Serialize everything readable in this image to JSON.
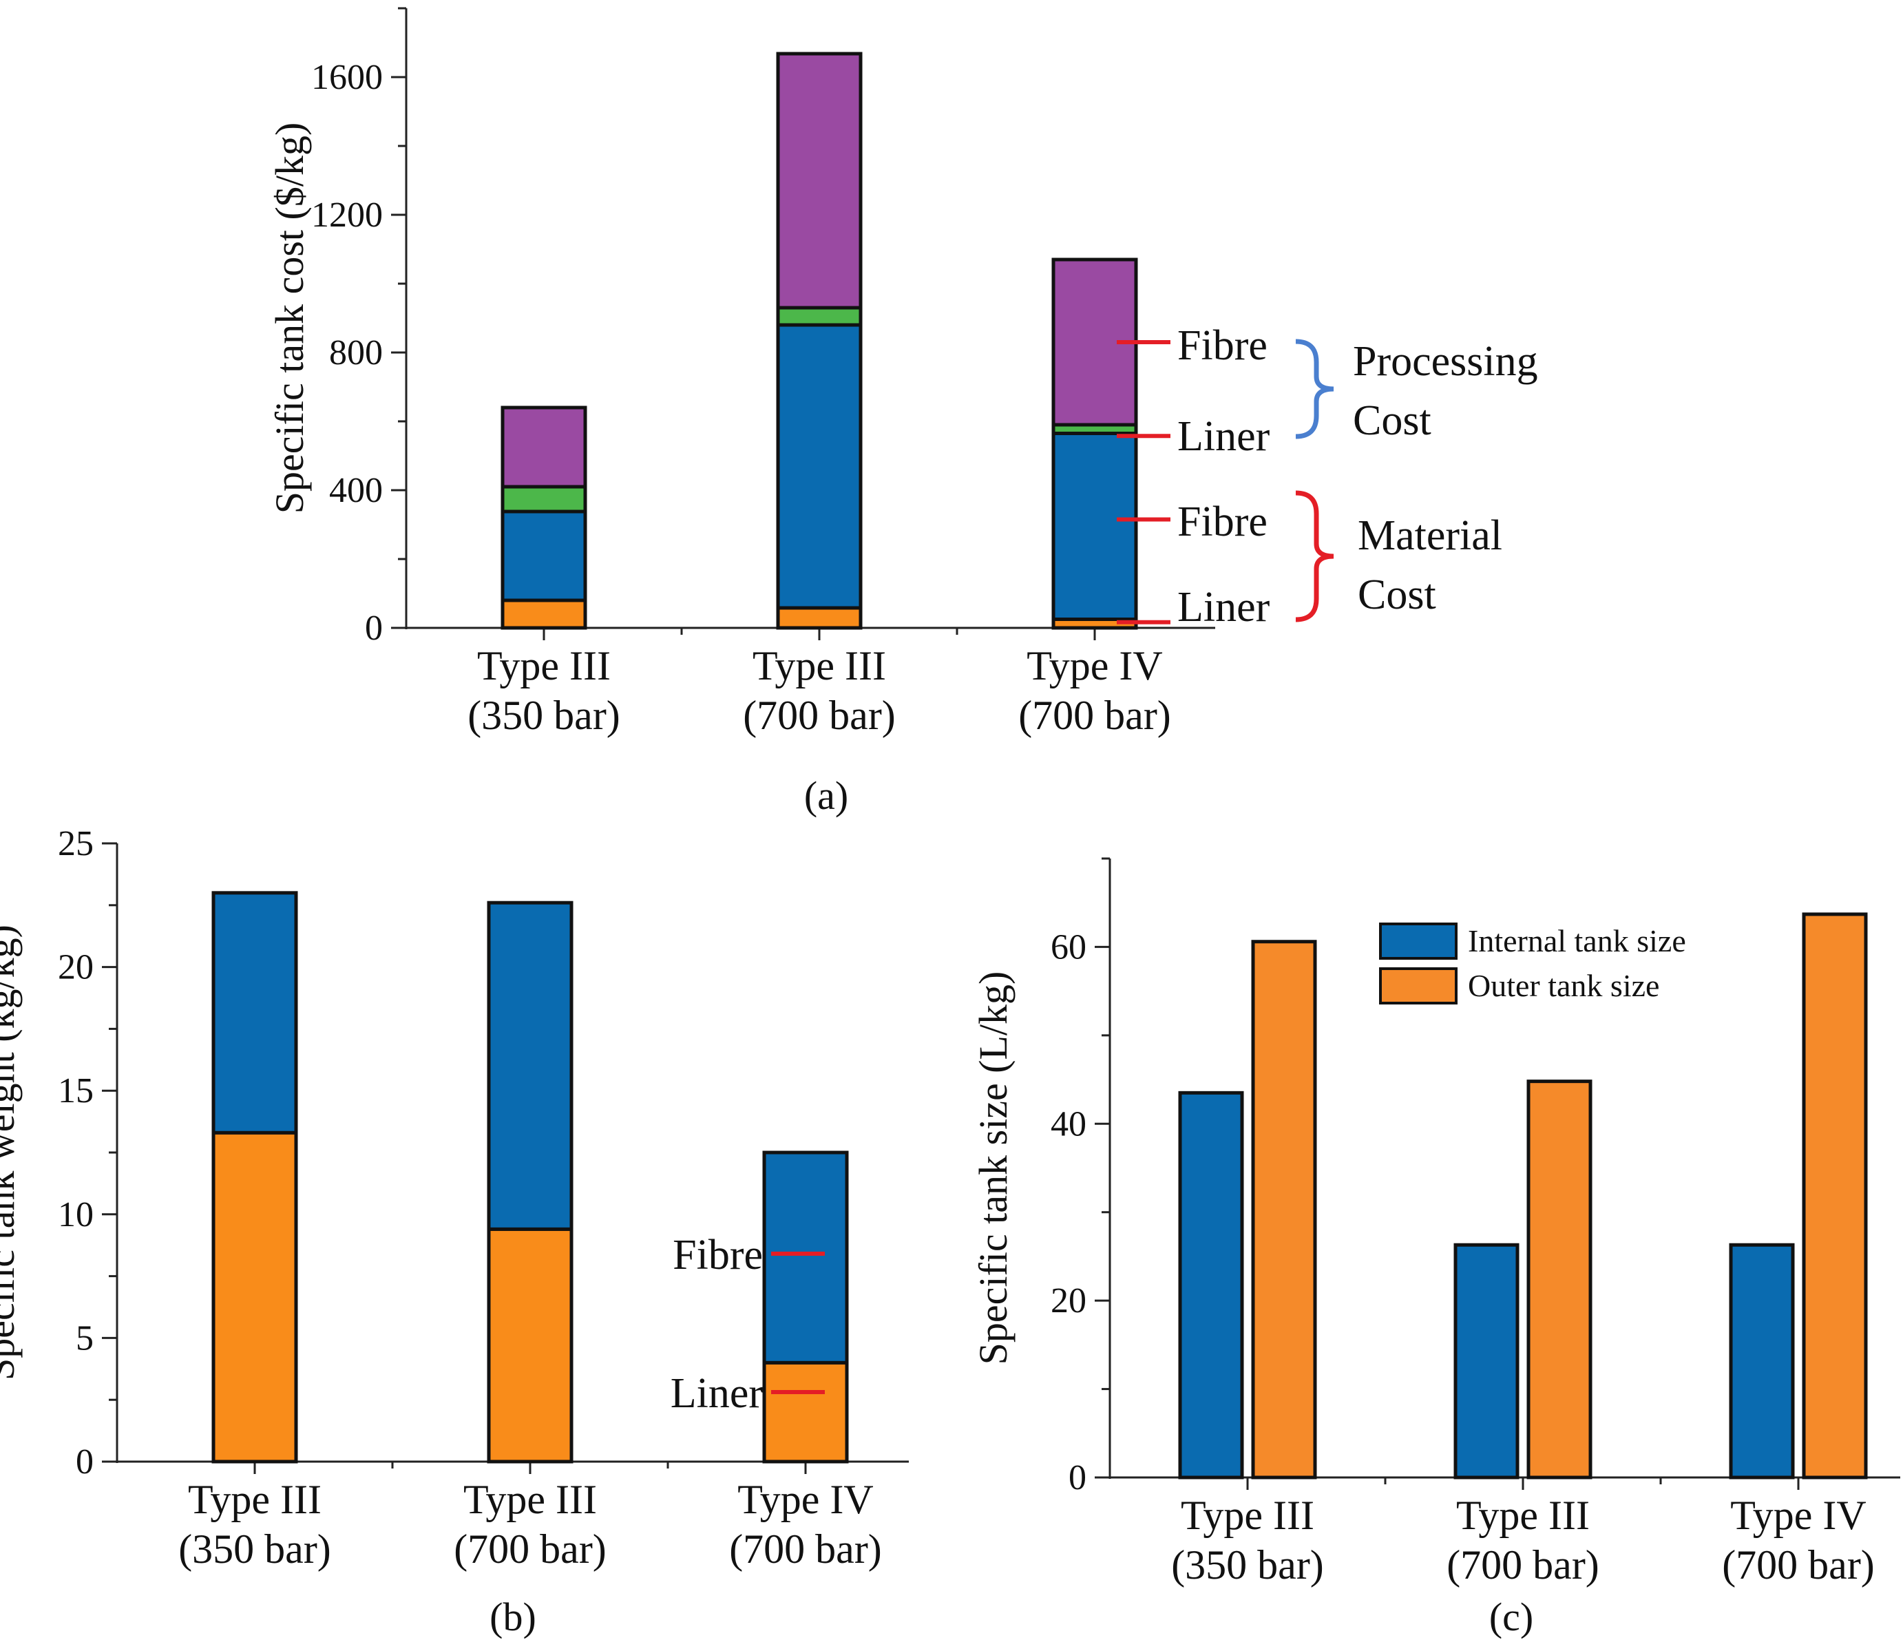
{
  "colors": {
    "liner_material": "#f98c1a",
    "fibre_material": "#0a6bb0",
    "liner_processing": "#4cb74a",
    "fibre_processing": "#9a4aa2",
    "internal": "#0a6bb0",
    "outer": "#f58a2a",
    "processing_brace": "#4a7fcf",
    "material_brace": "#e41e26",
    "pointer": "#e41e26"
  },
  "chart_data": [
    {
      "id": "a",
      "type": "bar",
      "stacked": true,
      "panel_label": "(a)",
      "categories": [
        [
          "Type III",
          "(350 bar)"
        ],
        [
          "Type III",
          "(700 bar)"
        ],
        [
          "Type IV",
          "(700 bar)"
        ]
      ],
      "ylabel": "Specific tank cost ($/kg)",
      "ylim": [
        0,
        1800
      ],
      "yticks": [
        0,
        400,
        800,
        1200,
        1600
      ],
      "series": [
        {
          "key": "liner_material",
          "values": [
            80,
            58,
            25
          ]
        },
        {
          "key": "fibre_material",
          "values": [
            258,
            822,
            540
          ]
        },
        {
          "key": "liner_processing",
          "values": [
            72,
            50,
            25
          ]
        },
        {
          "key": "fibre_processing",
          "values": [
            230,
            738,
            480
          ]
        }
      ],
      "annotations": {
        "fibre_processing": "Fibre",
        "liner_processing": "Liner",
        "fibre_material": "Fibre",
        "liner_material": "Liner",
        "processing_group": [
          "Processing",
          "Cost"
        ],
        "material_group": [
          "Material",
          "Cost"
        ]
      }
    },
    {
      "id": "b",
      "type": "bar",
      "stacked": true,
      "panel_label": "(b)",
      "categories": [
        [
          "Type III",
          "(350 bar)"
        ],
        [
          "Type III",
          "(700 bar)"
        ],
        [
          "Type IV",
          "(700 bar)"
        ]
      ],
      "ylabel": "Specific tank weight (kg/kg)",
      "ylim": [
        0,
        25
      ],
      "yticks": [
        0,
        5,
        10,
        15,
        20,
        25
      ],
      "series": [
        {
          "key": "liner_material",
          "values": [
            13.3,
            9.4,
            4.0
          ]
        },
        {
          "key": "fibre_material",
          "values": [
            9.7,
            13.2,
            8.5
          ]
        }
      ],
      "annotations": {
        "fibre": "Fibre",
        "liner": "Liner"
      }
    },
    {
      "id": "c",
      "type": "bar",
      "stacked": false,
      "panel_label": "(c)",
      "categories": [
        [
          "Type III",
          "(350 bar)"
        ],
        [
          "Type III",
          "(700 bar)"
        ],
        [
          "Type IV",
          "(700 bar)"
        ]
      ],
      "ylabel": "Specific tank size (L/kg)",
      "ylim": [
        0,
        70
      ],
      "yticks": [
        0,
        20,
        40,
        60
      ],
      "legend_position": "top-right",
      "series": [
        {
          "key": "internal",
          "name": "Internal tank size",
          "values": [
            43.5,
            26.3,
            26.3
          ]
        },
        {
          "key": "outer",
          "name": "Outer tank size",
          "values": [
            60.6,
            44.8,
            63.7
          ]
        }
      ]
    }
  ]
}
